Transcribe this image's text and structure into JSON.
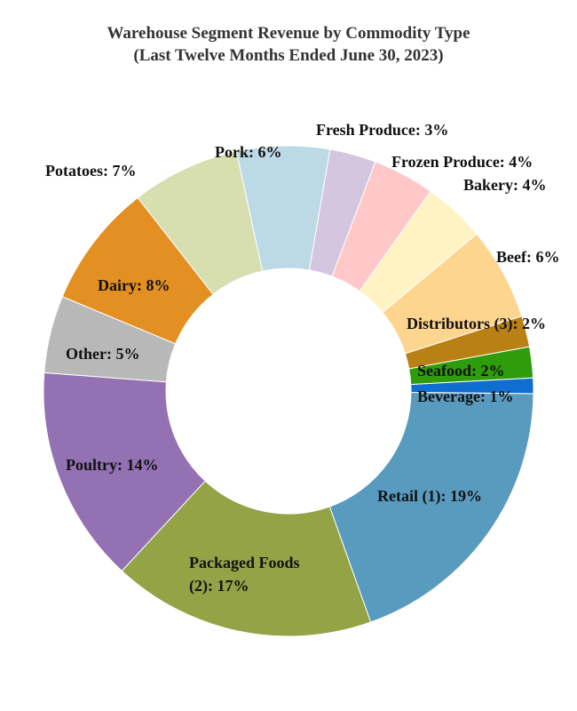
{
  "chart_data": {
    "type": "donut",
    "title": "Warehouse Segment Revenue by Commodity Type",
    "subtitle": "(Last Twelve Months Ended June 30, 2023)",
    "unit": "%",
    "slices": [
      {
        "name": "Retail (1)",
        "label": "Retail (1): 19%",
        "value": 19,
        "color": "#599bbf"
      },
      {
        "name": "Packaged Foods (2)",
        "label_lines": [
          "Packaged Foods",
          "(2): 17%"
        ],
        "value": 17,
        "color": "#93a346"
      },
      {
        "name": "Poultry",
        "label": "Poultry: 14%",
        "value": 14,
        "color": "#9371b3"
      },
      {
        "name": "Other",
        "label": "Other: 5%",
        "value": 5,
        "color": "#b8b8b8"
      },
      {
        "name": "Dairy",
        "label": "Dairy: 8%",
        "value": 8,
        "color": "#e48f22"
      },
      {
        "name": "Potatoes",
        "label": "Potatoes: 7%",
        "value": 7,
        "color": "#d7dfb0"
      },
      {
        "name": "Pork",
        "label": "Pork: 6%",
        "value": 6,
        "color": "#bcd9e6"
      },
      {
        "name": "Fresh Produce",
        "label": "Fresh Produce: 3%",
        "value": 3,
        "color": "#d5c6e0"
      },
      {
        "name": "Frozen Produce",
        "label": "Frozen Produce: 4%",
        "value": 4,
        "color": "#ffc8c8"
      },
      {
        "name": "Bakery",
        "label": "Bakery: 4%",
        "value": 4,
        "color": "#fff3c3"
      },
      {
        "name": "Beef",
        "label": "Beef: 6%",
        "value": 6,
        "color": "#fdd58e"
      },
      {
        "name": "Distributors (3)",
        "label": "Distributors (3): 2%",
        "value": 2,
        "color": "#b98114"
      },
      {
        "name": "Seafood",
        "label": "Seafood: 2%",
        "value": 2,
        "color": "#2f9c0c"
      },
      {
        "name": "Beverage",
        "label": "Beverage: 1%",
        "value": 1,
        "color": "#0e6fd0"
      }
    ]
  }
}
